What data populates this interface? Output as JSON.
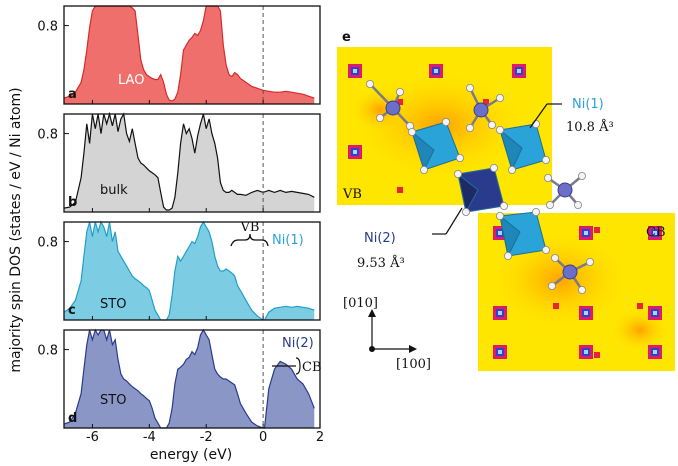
{
  "chart_data": {
    "type": "area",
    "xlabel": "energy (eV)",
    "ylabel": "majority spin DOS (states / eV / Ni atom)",
    "xlim": [
      -7,
      2
    ],
    "x_ticks": [
      "-6",
      "-4",
      "-2",
      "0",
      "2"
    ],
    "y_tick": "0.8",
    "ylim": [
      0,
      1.0
    ],
    "fermi_level": 0,
    "panels": [
      {
        "letter": "a",
        "label": "LAO",
        "color": "#ef6f6c",
        "line": "#d42c2c",
        "x": [
          -7.0,
          -6.8,
          -6.6,
          -6.4,
          -6.3,
          -6.2,
          -6.1,
          -6.0,
          -5.9,
          -5.8,
          -5.7,
          -5.6,
          -5.5,
          -5.4,
          -5.3,
          -5.2,
          -5.1,
          -5.0,
          -4.9,
          -4.8,
          -4.7,
          -4.6,
          -4.5,
          -4.4,
          -4.3,
          -4.2,
          -4.1,
          -4.0,
          -3.9,
          -3.8,
          -3.7,
          -3.6,
          -3.5,
          -3.4,
          -3.3,
          -3.2,
          -3.1,
          -3.0,
          -2.9,
          -2.8,
          -2.7,
          -2.6,
          -2.5,
          -2.4,
          -2.3,
          -2.2,
          -2.1,
          -2.0,
          -1.9,
          -1.8,
          -1.7,
          -1.6,
          -1.5,
          -1.4,
          -1.3,
          -1.2,
          -1.1,
          -1.0,
          -0.9,
          -0.8,
          -0.6,
          -0.4,
          -0.2,
          0.0,
          0.2,
          0.4,
          0.6,
          0.8,
          1.0,
          1.2,
          1.4,
          1.6,
          1.8
        ],
        "y": [
          0.06,
          0.08,
          0.12,
          0.22,
          0.35,
          0.55,
          0.78,
          0.95,
          1.0,
          1.0,
          1.0,
          1.0,
          1.0,
          1.0,
          1.0,
          1.0,
          1.0,
          1.0,
          1.0,
          1.0,
          1.0,
          0.98,
          0.95,
          0.7,
          0.45,
          0.35,
          0.3,
          0.28,
          0.26,
          0.25,
          0.25,
          0.3,
          0.22,
          0.1,
          0.04,
          0.03,
          0.05,
          0.12,
          0.3,
          0.55,
          0.6,
          0.65,
          0.68,
          0.72,
          0.7,
          0.75,
          0.85,
          1.0,
          1.0,
          1.0,
          1.0,
          1.0,
          0.95,
          0.6,
          0.4,
          0.3,
          0.28,
          0.32,
          0.3,
          0.26,
          0.22,
          0.18,
          0.16,
          0.14,
          0.13,
          0.12,
          0.12,
          0.13,
          0.12,
          0.11,
          0.1,
          0.08,
          0.06
        ]
      },
      {
        "letter": "b",
        "label": "bulk",
        "color": "#d4d4d4",
        "line": "#111111",
        "x": [
          -7.0,
          -6.8,
          -6.6,
          -6.4,
          -6.3,
          -6.2,
          -6.1,
          -6.0,
          -5.9,
          -5.8,
          -5.7,
          -5.6,
          -5.5,
          -5.4,
          -5.3,
          -5.2,
          -5.1,
          -5.0,
          -4.9,
          -4.8,
          -4.7,
          -4.6,
          -4.5,
          -4.4,
          -4.3,
          -4.2,
          -4.1,
          -4.0,
          -3.9,
          -3.8,
          -3.7,
          -3.6,
          -3.5,
          -3.4,
          -3.3,
          -3.2,
          -3.1,
          -3.0,
          -2.9,
          -2.8,
          -2.7,
          -2.6,
          -2.5,
          -2.4,
          -2.3,
          -2.2,
          -2.1,
          -2.0,
          -1.9,
          -1.8,
          -1.7,
          -1.6,
          -1.5,
          -1.4,
          -1.3,
          -1.2,
          -1.1,
          -1.0,
          -0.9,
          -0.8,
          -0.6,
          -0.4,
          -0.2,
          0.0,
          0.2,
          0.4,
          0.6,
          0.8,
          1.0,
          1.2,
          1.4,
          1.6,
          1.8
        ],
        "y": [
          0.04,
          0.05,
          0.1,
          0.35,
          0.6,
          0.9,
          0.7,
          1.0,
          0.85,
          1.0,
          0.8,
          1.0,
          0.9,
          1.0,
          0.88,
          1.0,
          0.82,
          0.95,
          1.0,
          0.8,
          0.72,
          0.85,
          0.7,
          0.55,
          0.5,
          0.48,
          0.45,
          0.42,
          0.4,
          0.38,
          0.35,
          0.2,
          0.05,
          0.02,
          0.02,
          0.04,
          0.15,
          0.4,
          0.7,
          0.9,
          0.8,
          0.85,
          0.75,
          0.6,
          0.78,
          0.9,
          1.0,
          0.85,
          0.95,
          0.8,
          0.7,
          0.55,
          0.3,
          0.22,
          0.2,
          0.2,
          0.22,
          0.2,
          0.18,
          0.18,
          0.17,
          0.2,
          0.22,
          0.2,
          0.22,
          0.2,
          0.22,
          0.2,
          0.21,
          0.2,
          0.19,
          0.18,
          0.15
        ]
      },
      {
        "letter": "c",
        "label": "STO",
        "color": "#7ccce4",
        "line": "#1fa0c8",
        "x": [
          -7.0,
          -6.8,
          -6.6,
          -6.4,
          -6.3,
          -6.2,
          -6.1,
          -6.0,
          -5.9,
          -5.8,
          -5.7,
          -5.6,
          -5.5,
          -5.4,
          -5.3,
          -5.2,
          -5.1,
          -5.0,
          -4.9,
          -4.8,
          -4.7,
          -4.6,
          -4.5,
          -4.4,
          -4.3,
          -4.2,
          -4.1,
          -4.0,
          -3.9,
          -3.8,
          -3.7,
          -3.6,
          -3.5,
          -3.4,
          -3.3,
          -3.2,
          -3.1,
          -3.0,
          -2.9,
          -2.8,
          -2.7,
          -2.6,
          -2.5,
          -2.4,
          -2.3,
          -2.2,
          -2.1,
          -2.0,
          -1.9,
          -1.8,
          -1.7,
          -1.6,
          -1.5,
          -1.4,
          -1.3,
          -1.2,
          -1.1,
          -1.0,
          -0.9,
          -0.8,
          -0.6,
          -0.4,
          -0.2,
          0.0,
          0.05,
          0.2,
          0.4,
          0.6,
          0.8,
          1.0,
          1.2,
          1.4,
          1.6,
          1.8
        ],
        "y": [
          0.08,
          0.12,
          0.2,
          0.4,
          0.65,
          0.9,
          1.0,
          0.85,
          1.0,
          0.9,
          1.0,
          0.95,
          0.85,
          1.0,
          0.8,
          0.9,
          0.7,
          0.65,
          0.6,
          0.55,
          0.5,
          0.45,
          0.42,
          0.4,
          0.38,
          0.35,
          0.33,
          0.3,
          0.2,
          0.1,
          0.05,
          0.0,
          0.0,
          0.0,
          0.05,
          0.25,
          0.5,
          0.65,
          0.6,
          0.65,
          0.7,
          0.75,
          0.8,
          0.78,
          0.85,
          0.95,
          1.0,
          0.95,
          0.9,
          0.8,
          0.65,
          0.55,
          0.5,
          0.5,
          0.52,
          0.5,
          0.48,
          0.45,
          0.35,
          0.3,
          0.2,
          0.1,
          0.04,
          0.0,
          0.0,
          0.08,
          0.12,
          0.13,
          0.14,
          0.13,
          0.14,
          0.13,
          0.12,
          0.1
        ]
      },
      {
        "letter": "d",
        "label": "STO",
        "color": "#8a96c6",
        "line": "#2a3b8e",
        "x": [
          -7.0,
          -6.8,
          -6.6,
          -6.4,
          -6.3,
          -6.2,
          -6.1,
          -6.0,
          -5.9,
          -5.8,
          -5.7,
          -5.6,
          -5.5,
          -5.4,
          -5.3,
          -5.2,
          -5.1,
          -5.0,
          -4.9,
          -4.8,
          -4.7,
          -4.6,
          -4.5,
          -4.4,
          -4.3,
          -4.2,
          -4.1,
          -4.0,
          -3.9,
          -3.8,
          -3.7,
          -3.6,
          -3.5,
          -3.4,
          -3.3,
          -3.2,
          -3.1,
          -3.0,
          -2.9,
          -2.8,
          -2.7,
          -2.6,
          -2.5,
          -2.4,
          -2.3,
          -2.2,
          -2.1,
          -2.0,
          -1.9,
          -1.8,
          -1.7,
          -1.6,
          -1.5,
          -1.4,
          -1.3,
          -1.2,
          -1.1,
          -1.0,
          -0.9,
          -0.8,
          -0.6,
          -0.4,
          -0.2,
          0.0,
          0.05,
          0.2,
          0.4,
          0.6,
          0.8,
          1.0,
          1.2,
          1.4,
          1.6,
          1.8
        ],
        "y": [
          0.04,
          0.06,
          0.15,
          0.35,
          0.6,
          0.85,
          1.0,
          0.9,
          1.0,
          0.95,
          1.0,
          1.0,
          0.9,
          1.0,
          0.85,
          0.9,
          0.7,
          0.55,
          0.5,
          0.48,
          0.45,
          0.42,
          0.4,
          0.38,
          0.35,
          0.33,
          0.3,
          0.28,
          0.2,
          0.1,
          0.05,
          0.0,
          0.0,
          0.0,
          0.05,
          0.2,
          0.45,
          0.6,
          0.62,
          0.65,
          0.7,
          0.72,
          0.78,
          0.75,
          0.82,
          0.95,
          1.0,
          0.95,
          0.9,
          0.75,
          0.6,
          0.55,
          0.52,
          0.5,
          0.5,
          0.48,
          0.46,
          0.44,
          0.35,
          0.25,
          0.15,
          0.06,
          0.02,
          0.0,
          0.0,
          0.4,
          0.6,
          0.68,
          0.65,
          0.6,
          0.5,
          0.45,
          0.35,
          0.2
        ]
      }
    ],
    "annotations": {
      "vb_bracket": "VB",
      "cb_bracket": "CB",
      "ni1_label": "Ni(1)",
      "ni2_label": "Ni(2)"
    }
  },
  "structure": {
    "panel_letter": "e",
    "vb_label": "VB",
    "cb_label": "CB",
    "ni1": {
      "label": "Ni(1)",
      "volume": "10.8 Å³",
      "color": "#2aa3d8"
    },
    "ni2": {
      "label": "Ni(2)",
      "volume": "9.53 Å³",
      "color": "#2a3b8e"
    },
    "axis_up": "[010]",
    "axis_right": "[100]"
  }
}
